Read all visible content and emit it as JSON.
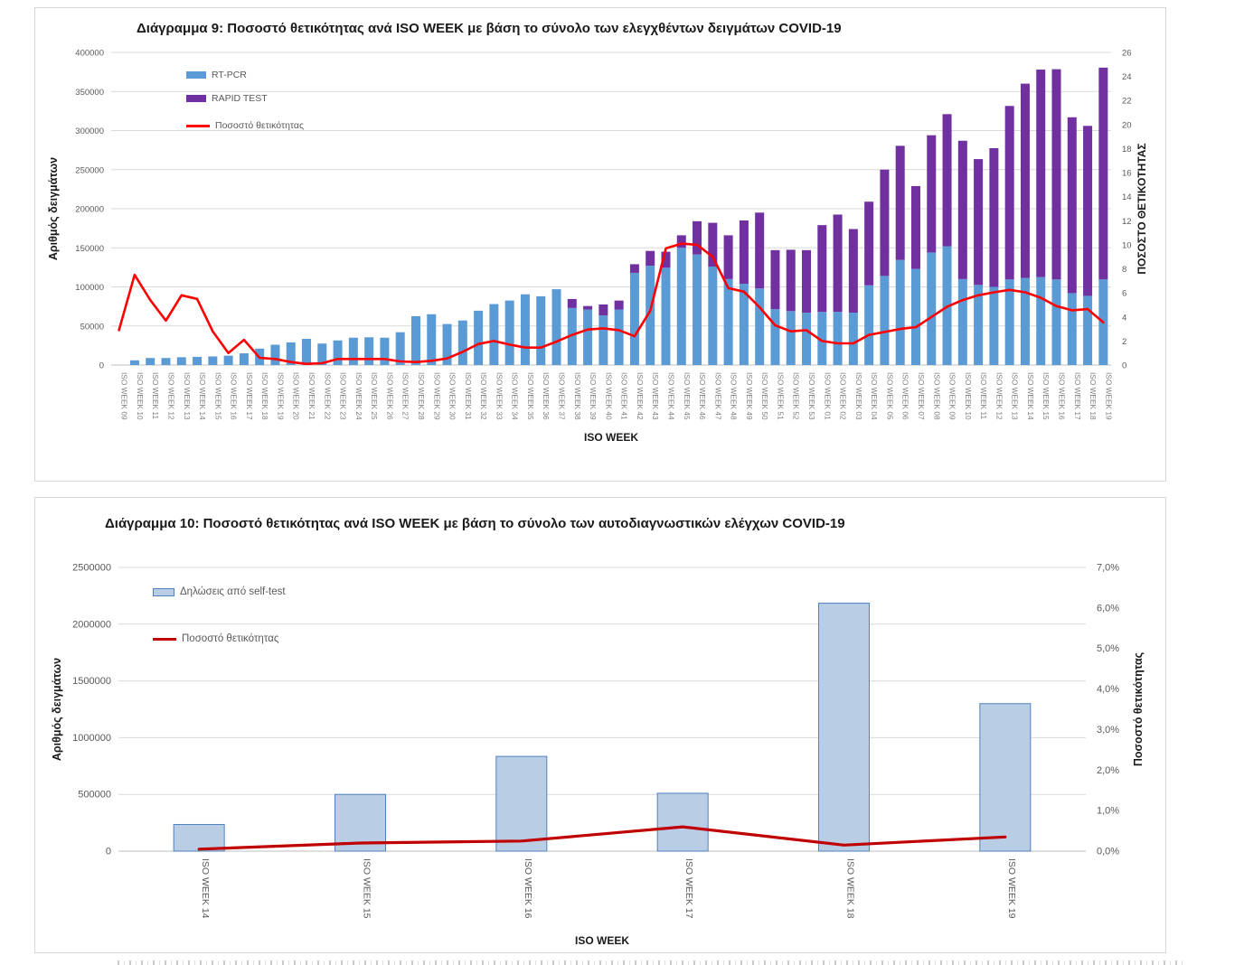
{
  "chart_data": [
    {
      "type": "bar+line",
      "title": "Διάγραμμα 9: Ποσοστό θετικότητας ανά ISO WEEK με βάση το σύνολο των ελεγχθέντων δειγμάτων COVID-19",
      "xlabel": "ISO WEEK",
      "ylabel_left": "Αριθμός δειγμάτων",
      "ylabel_right": "ΠΟΣΟΣΤΟ ΘΕΤΙΚΟΤΗΤΑΣ",
      "ylim_left": [
        0,
        400000
      ],
      "ylim_right": [
        0,
        26
      ],
      "yticks_left": [
        "0",
        "50000",
        "100000",
        "150000",
        "200000",
        "250000",
        "300000",
        "350000",
        "400000"
      ],
      "yticks_right": [
        "0",
        "2",
        "4",
        "6",
        "8",
        "10",
        "12",
        "14",
        "16",
        "18",
        "20",
        "22",
        "24",
        "26"
      ],
      "grid": true,
      "legend_position": "top-left-inside",
      "legend": [
        {
          "label": "RT-PCR",
          "color": "#5B9BD5",
          "kind": "bar"
        },
        {
          "label": "RAPID TEST",
          "color": "#7030A0",
          "kind": "bar"
        },
        {
          "label": "Ποσοστό θετικότητας",
          "color": "#FF0000",
          "kind": "line"
        }
      ],
      "categories": [
        "ISO WEEK 09",
        "ISO WEEK 10",
        "ISO WEEK 11",
        "ISO WEEK 12",
        "ISO WEEK 13",
        "ISO WEEK 14",
        "ISO WEEK 15",
        "ISO WEEK 16",
        "ISO WEEK 17",
        "ISO WEEK 18",
        "ISO WEEK 19",
        "ISO WEEK 20",
        "ISO WEEK 21",
        "ISO WEEK 22",
        "ISO WEEK 23",
        "ISO WEEK 24",
        "ISO WEEK 25",
        "ISO WEEK 26",
        "ISO WEEK 27",
        "ISO WEEK 28",
        "ISO WEEK 29",
        "ISO WEEK 30",
        "ISO WEEK 31",
        "ISO WEEK 32",
        "ISO WEEK 33",
        "ISO WEEK 34",
        "ISO WEEK 35",
        "ISO WEEK 36",
        "ISO WEEK 37",
        "ISO WEEK 38",
        "ISO WEEK 39",
        "ISO WEEK 40",
        "ISO WEEK 41",
        "ISO WEEK 42",
        "ISO WEEK 43",
        "ISO WEEK 44",
        "ISO WEEK 45",
        "ISO WEEK 46",
        "ISO WEEK 47",
        "ISO WEEK 48",
        "ISO WEEK 49",
        "ISO WEEK 50",
        "ISO WEEK 51",
        "ISO WEEK 52",
        "ISO WEEK 53",
        "ISO WEEK 01",
        "ISO WEEK 02",
        "ISO WEEK 03",
        "ISO WEEK 04",
        "ISO WEEK 05",
        "ISO WEEK 06",
        "ISO WEEK 07",
        "ISO WEEK 08",
        "ISO WEEK 09",
        "ISO WEEK 10",
        "ISO WEEK 11",
        "ISO WEEK 12",
        "ISO WEEK 13",
        "ISO WEEK 14",
        "ISO WEEK 15",
        "ISO WEEK 16",
        "ISO WEEK 17",
        "ISO WEEK 18",
        "ISO WEEK 19"
      ],
      "series": [
        {
          "name": "RT-PCR",
          "axis": "left",
          "kind": "bar",
          "color": "#5B9BD5",
          "values": [
            0,
            6000,
            9000,
            9000,
            10000,
            10500,
            11000,
            12000,
            15000,
            21000,
            26000,
            29000,
            33500,
            27500,
            31500,
            35000,
            35500,
            35000,
            42000,
            62500,
            65000,
            52500,
            57000,
            69500,
            78000,
            82500,
            90500,
            88000,
            97000,
            73000,
            71000,
            63500,
            71000,
            118000,
            127000,
            124500,
            150000,
            141500,
            126000,
            110000,
            104000,
            98000,
            71500,
            69000,
            67000,
            68000,
            68000,
            67000,
            102000,
            114000,
            134500,
            123000,
            144000,
            152000,
            110000,
            102500,
            100000,
            109500,
            111500,
            112500,
            109500,
            92000,
            88500,
            109500
          ]
        },
        {
          "name": "RAPID TEST",
          "axis": "left",
          "kind": "bar",
          "color": "#7030A0",
          "values": [
            0,
            0,
            0,
            0,
            0,
            0,
            0,
            0,
            0,
            0,
            0,
            0,
            0,
            0,
            0,
            0,
            0,
            0,
            0,
            0,
            0,
            0,
            0,
            0,
            0,
            0,
            0,
            0,
            0,
            11500,
            4500,
            14000,
            11500,
            11000,
            19000,
            20500,
            16000,
            42500,
            56000,
            56000,
            81000,
            97000,
            75500,
            78500,
            80000,
            111000,
            124500,
            107000,
            107000,
            136000,
            146000,
            106000,
            150000,
            169000,
            177000,
            161000,
            177500,
            222000,
            248500,
            265500,
            269000,
            225000,
            217500,
            271000
          ]
        },
        {
          "name": "Ποσοστό θετικότητας",
          "axis": "right",
          "kind": "line",
          "color": "#FF0000",
          "values": [
            2.9,
            7.5,
            5.4,
            3.7,
            5.8,
            5.5,
            2.8,
            1.0,
            2.1,
            0.6,
            0.5,
            0.25,
            0.1,
            0.15,
            0.5,
            0.5,
            0.5,
            0.5,
            0.3,
            0.25,
            0.35,
            0.55,
            1.1,
            1.75,
            2.0,
            1.7,
            1.45,
            1.45,
            1.95,
            2.5,
            2.95,
            3.05,
            2.9,
            2.4,
            4.5,
            9.7,
            10.1,
            10.0,
            9.0,
            6.4,
            6.1,
            4.8,
            3.3,
            2.8,
            2.9,
            2.0,
            1.8,
            1.8,
            2.5,
            2.75,
            3.0,
            3.15,
            4.0,
            4.85,
            5.4,
            5.8,
            6.05,
            6.25,
            6.05,
            5.6,
            4.9,
            4.55,
            4.65,
            3.55
          ]
        }
      ]
    },
    {
      "type": "bar+line",
      "title": "Διάγραμμα 10: Ποσοστό θετικότητας ανά ISO WEEK με βάση το σύνολο των αυτοδιαγνωστικών ελέγχων COVID-19",
      "xlabel": "ISO WEEK",
      "ylabel_left": "Αριθμός δειγμάτων",
      "ylabel_right": "Ποσοστό θετικότητας",
      "ylim_left": [
        0,
        2500000
      ],
      "ylim_right": [
        0,
        7
      ],
      "yticks_left": [
        "0",
        "500000",
        "1000000",
        "1500000",
        "2000000",
        "2500000"
      ],
      "yticks_right": [
        "0,0%",
        "1,0%",
        "2,0%",
        "3,0%",
        "4,0%",
        "5,0%",
        "6,0%",
        "7,0%"
      ],
      "grid": true,
      "legend_position": "top-left-inside",
      "legend": [
        {
          "label": "Δηλώσεις από self-test",
          "color": "#B9CDE5",
          "border": "#4F81BD",
          "kind": "bar"
        },
        {
          "label": "Ποσοστό θετικότητας",
          "color": "#C00000",
          "kind": "line"
        }
      ],
      "categories": [
        "ISO WEEK 14",
        "ISO WEEK 15",
        "ISO WEEK 16",
        "ISO WEEK 17",
        "ISO WEEK 18",
        "ISO WEEK 19"
      ],
      "series": [
        {
          "name": "Δηλώσεις από self-test",
          "axis": "left",
          "kind": "bar",
          "color": "#B9CDE5",
          "border": "#4F81BD",
          "values": [
            235000,
            500000,
            835000,
            510000,
            2185000,
            1300000
          ]
        },
        {
          "name": "Ποσοστό θετικότητας",
          "axis": "right",
          "kind": "line",
          "color": "#C00000",
          "values": [
            0.05,
            0.2,
            0.25,
            0.6,
            0.15,
            0.35
          ]
        }
      ]
    }
  ]
}
